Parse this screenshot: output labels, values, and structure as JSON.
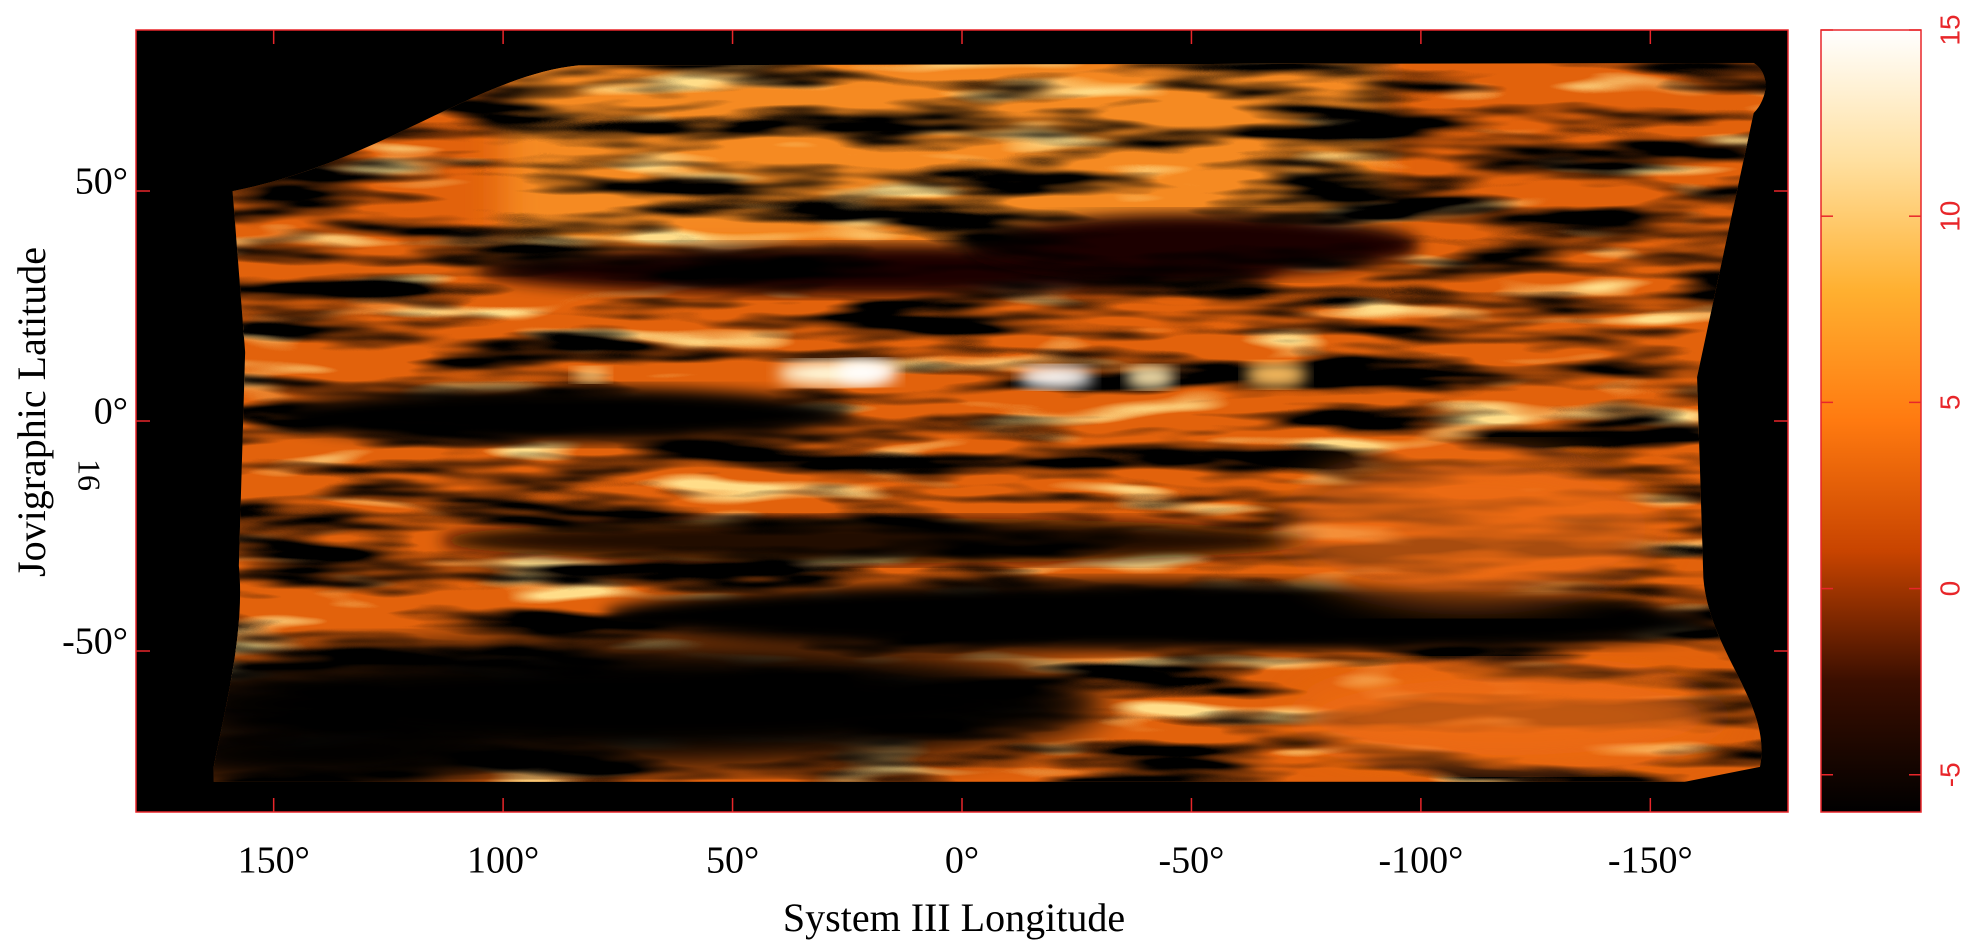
{
  "chart_data": {
    "type": "image_map",
    "x_label": "System III Longitude",
    "y_label": "Jovigraphic Latitude",
    "annotation": "16",
    "xlim": [
      180,
      -180
    ],
    "xticks": [
      {
        "value": 150,
        "label": "150°"
      },
      {
        "value": 100,
        "label": "100°"
      },
      {
        "value": 50,
        "label": "50°"
      },
      {
        "value": 0,
        "label": "0°"
      },
      {
        "value": -50,
        "label": "-50°"
      },
      {
        "value": -100,
        "label": "-100°"
      },
      {
        "value": -150,
        "label": "-150°"
      }
    ],
    "ylim": [
      -85,
      85
    ],
    "yticks": [
      {
        "value": 50,
        "label": "50°"
      },
      {
        "value": 0,
        "label": "0°"
      },
      {
        "value": -50,
        "label": "-50°"
      }
    ],
    "zlim": [
      -6,
      15
    ],
    "zticks": [
      -5,
      0,
      5,
      10,
      15
    ],
    "frame_color": "#e8262a",
    "colormap": [
      "#000000",
      "#3a0e00",
      "#c84400",
      "#ff7a10",
      "#ffb030",
      "#ffe0a0",
      "#ffffff"
    ]
  }
}
